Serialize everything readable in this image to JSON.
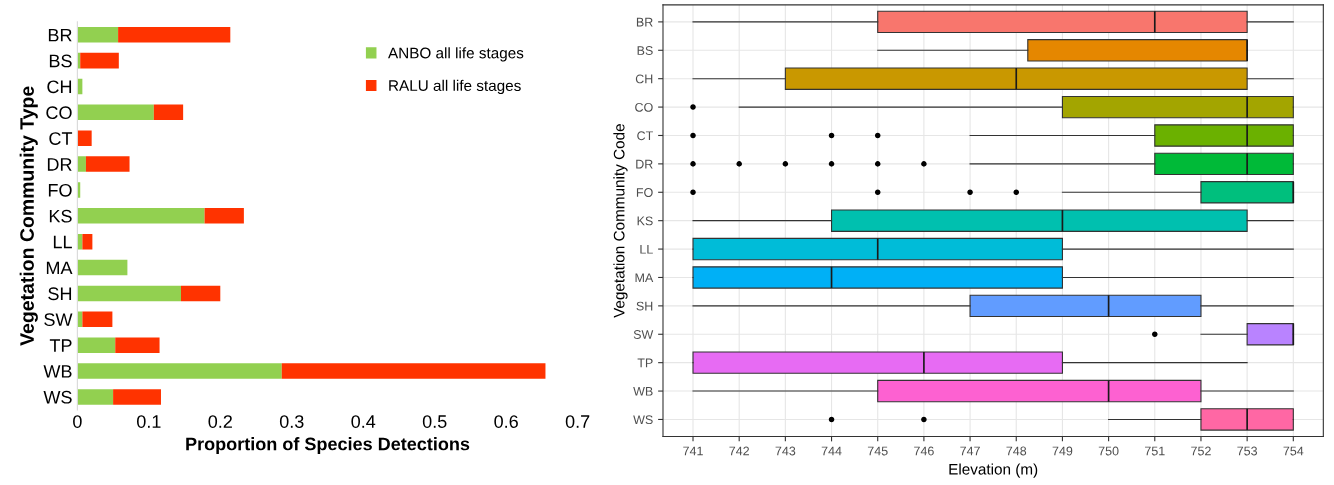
{
  "chart_data": [
    {
      "type": "bar",
      "orientation": "horizontal",
      "stacked": true,
      "xlabel": "Proportion of Species Detections",
      "ylabel": "Vegetation Community Type",
      "categories": [
        "BR",
        "BS",
        "CH",
        "CO",
        "CT",
        "DR",
        "FO",
        "KS",
        "LL",
        "MA",
        "SH",
        "SW",
        "TP",
        "WB",
        "WS"
      ],
      "series": [
        {
          "name": "ANBO all life stages",
          "color": "#92d050",
          "values": [
            0.057,
            0.004,
            0.007,
            0.107,
            0,
            0.012,
            0.004,
            0.178,
            0.007,
            0.07,
            0.145,
            0.007,
            0.053,
            0.286,
            0.05
          ]
        },
        {
          "name": "RALU all life stages",
          "color": "#ff3300",
          "values": [
            0.157,
            0.054,
            0,
            0.041,
            0.02,
            0.061,
            0,
            0.055,
            0.014,
            0,
            0.055,
            0.042,
            0.062,
            0.369,
            0.067
          ]
        }
      ],
      "xlim": [
        0,
        0.7
      ],
      "xticks": [
        0,
        0.1,
        0.2,
        0.3,
        0.4,
        0.5,
        0.6,
        0.7
      ],
      "legend": "top right",
      "grid": false
    },
    {
      "type": "box",
      "orientation": "horizontal",
      "xlabel": "Elevation (m)",
      "ylabel": "Vegetation Community Code",
      "categories": [
        "BR",
        "BS",
        "CH",
        "CO",
        "CT",
        "DR",
        "FO",
        "KS",
        "LL",
        "MA",
        "SH",
        "SW",
        "TP",
        "WB",
        "WS"
      ],
      "colors": [
        "#f8766d",
        "#e58700",
        "#c99800",
        "#a3a500",
        "#6bb100",
        "#00ba38",
        "#00bf7d",
        "#00c0af",
        "#00bcd8",
        "#00b0f6",
        "#619cff",
        "#b983ff",
        "#e76bf3",
        "#fd61d1",
        "#ff67a4"
      ],
      "boxes": [
        {
          "low": 741,
          "q1": 745,
          "median": 751,
          "q3": 753,
          "high": 754
        },
        {
          "low": 745,
          "q1": 748.25,
          "median": 753,
          "q3": 753,
          "high": 753
        },
        {
          "low": 741,
          "q1": 743,
          "median": 748,
          "q3": 753,
          "high": 754
        },
        {
          "low": 742,
          "q1": 749,
          "median": 753,
          "q3": 754,
          "high": 754,
          "outliers": [
            741
          ]
        },
        {
          "low": 747,
          "q1": 751,
          "median": 753,
          "q3": 754,
          "high": 754,
          "outliers": [
            741,
            744,
            745
          ]
        },
        {
          "low": 747,
          "q1": 751,
          "median": 753,
          "q3": 754,
          "high": 754,
          "outliers": [
            741,
            742,
            743,
            744,
            745,
            746
          ]
        },
        {
          "low": 749,
          "q1": 752,
          "median": 754,
          "q3": 754,
          "high": 754,
          "outliers": [
            741,
            745,
            747,
            748
          ]
        },
        {
          "low": 741,
          "q1": 744,
          "median": 749,
          "q3": 753,
          "high": 754
        },
        {
          "low": 741,
          "q1": 741,
          "median": 745,
          "q3": 749,
          "high": 754
        },
        {
          "low": 741,
          "q1": 741,
          "median": 744,
          "q3": 749,
          "high": 754
        },
        {
          "low": 741,
          "q1": 747,
          "median": 750,
          "q3": 752,
          "high": 754
        },
        {
          "low": 752,
          "q1": 753,
          "median": 754,
          "q3": 754,
          "high": 754,
          "outliers": [
            751
          ]
        },
        {
          "low": 741,
          "q1": 741,
          "median": 746,
          "q3": 749,
          "high": 753
        },
        {
          "low": 741,
          "q1": 745,
          "median": 750,
          "q3": 752,
          "high": 754
        },
        {
          "low": 750,
          "q1": 752,
          "median": 753,
          "q3": 754,
          "high": 754,
          "outliers": [
            744,
            746
          ]
        }
      ],
      "xlim": [
        740.35,
        754.65
      ],
      "xticks": [
        741,
        742,
        743,
        744,
        745,
        746,
        747,
        748,
        749,
        750,
        751,
        752,
        753,
        754
      ],
      "grid": true
    }
  ]
}
